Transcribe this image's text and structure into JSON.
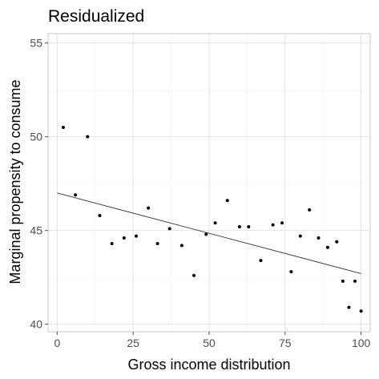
{
  "chart_data": {
    "type": "scatter",
    "title": "Residualized",
    "xlabel": "Gross income distribution",
    "ylabel": "Marginal propensity to consume",
    "xlim": [
      -3,
      103
    ],
    "ylim": [
      39.6,
      55.5
    ],
    "x_ticks": [
      0,
      25,
      50,
      75,
      100
    ],
    "y_ticks": [
      40,
      45,
      50,
      55
    ],
    "x_tick_labels": [
      "0",
      "25",
      "50",
      "75",
      "100"
    ],
    "y_tick_labels": [
      "40",
      "45",
      "50",
      "55"
    ],
    "grid": true,
    "points": [
      {
        "x": 2,
        "y": 50.5
      },
      {
        "x": 6,
        "y": 46.9
      },
      {
        "x": 10,
        "y": 50.0
      },
      {
        "x": 14,
        "y": 45.8
      },
      {
        "x": 18,
        "y": 44.3
      },
      {
        "x": 22,
        "y": 44.6
      },
      {
        "x": 26,
        "y": 44.7
      },
      {
        "x": 30,
        "y": 46.2
      },
      {
        "x": 33,
        "y": 44.3
      },
      {
        "x": 37,
        "y": 45.1
      },
      {
        "x": 41,
        "y": 44.2
      },
      {
        "x": 45,
        "y": 42.6
      },
      {
        "x": 49,
        "y": 44.8
      },
      {
        "x": 52,
        "y": 45.4
      },
      {
        "x": 56,
        "y": 46.6
      },
      {
        "x": 60,
        "y": 45.2
      },
      {
        "x": 63,
        "y": 45.2
      },
      {
        "x": 67,
        "y": 43.4
      },
      {
        "x": 71,
        "y": 45.3
      },
      {
        "x": 74,
        "y": 45.4
      },
      {
        "x": 77,
        "y": 42.8
      },
      {
        "x": 80,
        "y": 44.7
      },
      {
        "x": 83,
        "y": 46.1
      },
      {
        "x": 86,
        "y": 44.6
      },
      {
        "x": 89,
        "y": 44.1
      },
      {
        "x": 92,
        "y": 44.4
      },
      {
        "x": 94,
        "y": 42.3
      },
      {
        "x": 96,
        "y": 40.9
      },
      {
        "x": 98,
        "y": 42.3
      },
      {
        "x": 100,
        "y": 40.7
      }
    ],
    "trend_line": {
      "x": [
        0,
        100
      ],
      "y": [
        47.0,
        42.7
      ]
    }
  }
}
